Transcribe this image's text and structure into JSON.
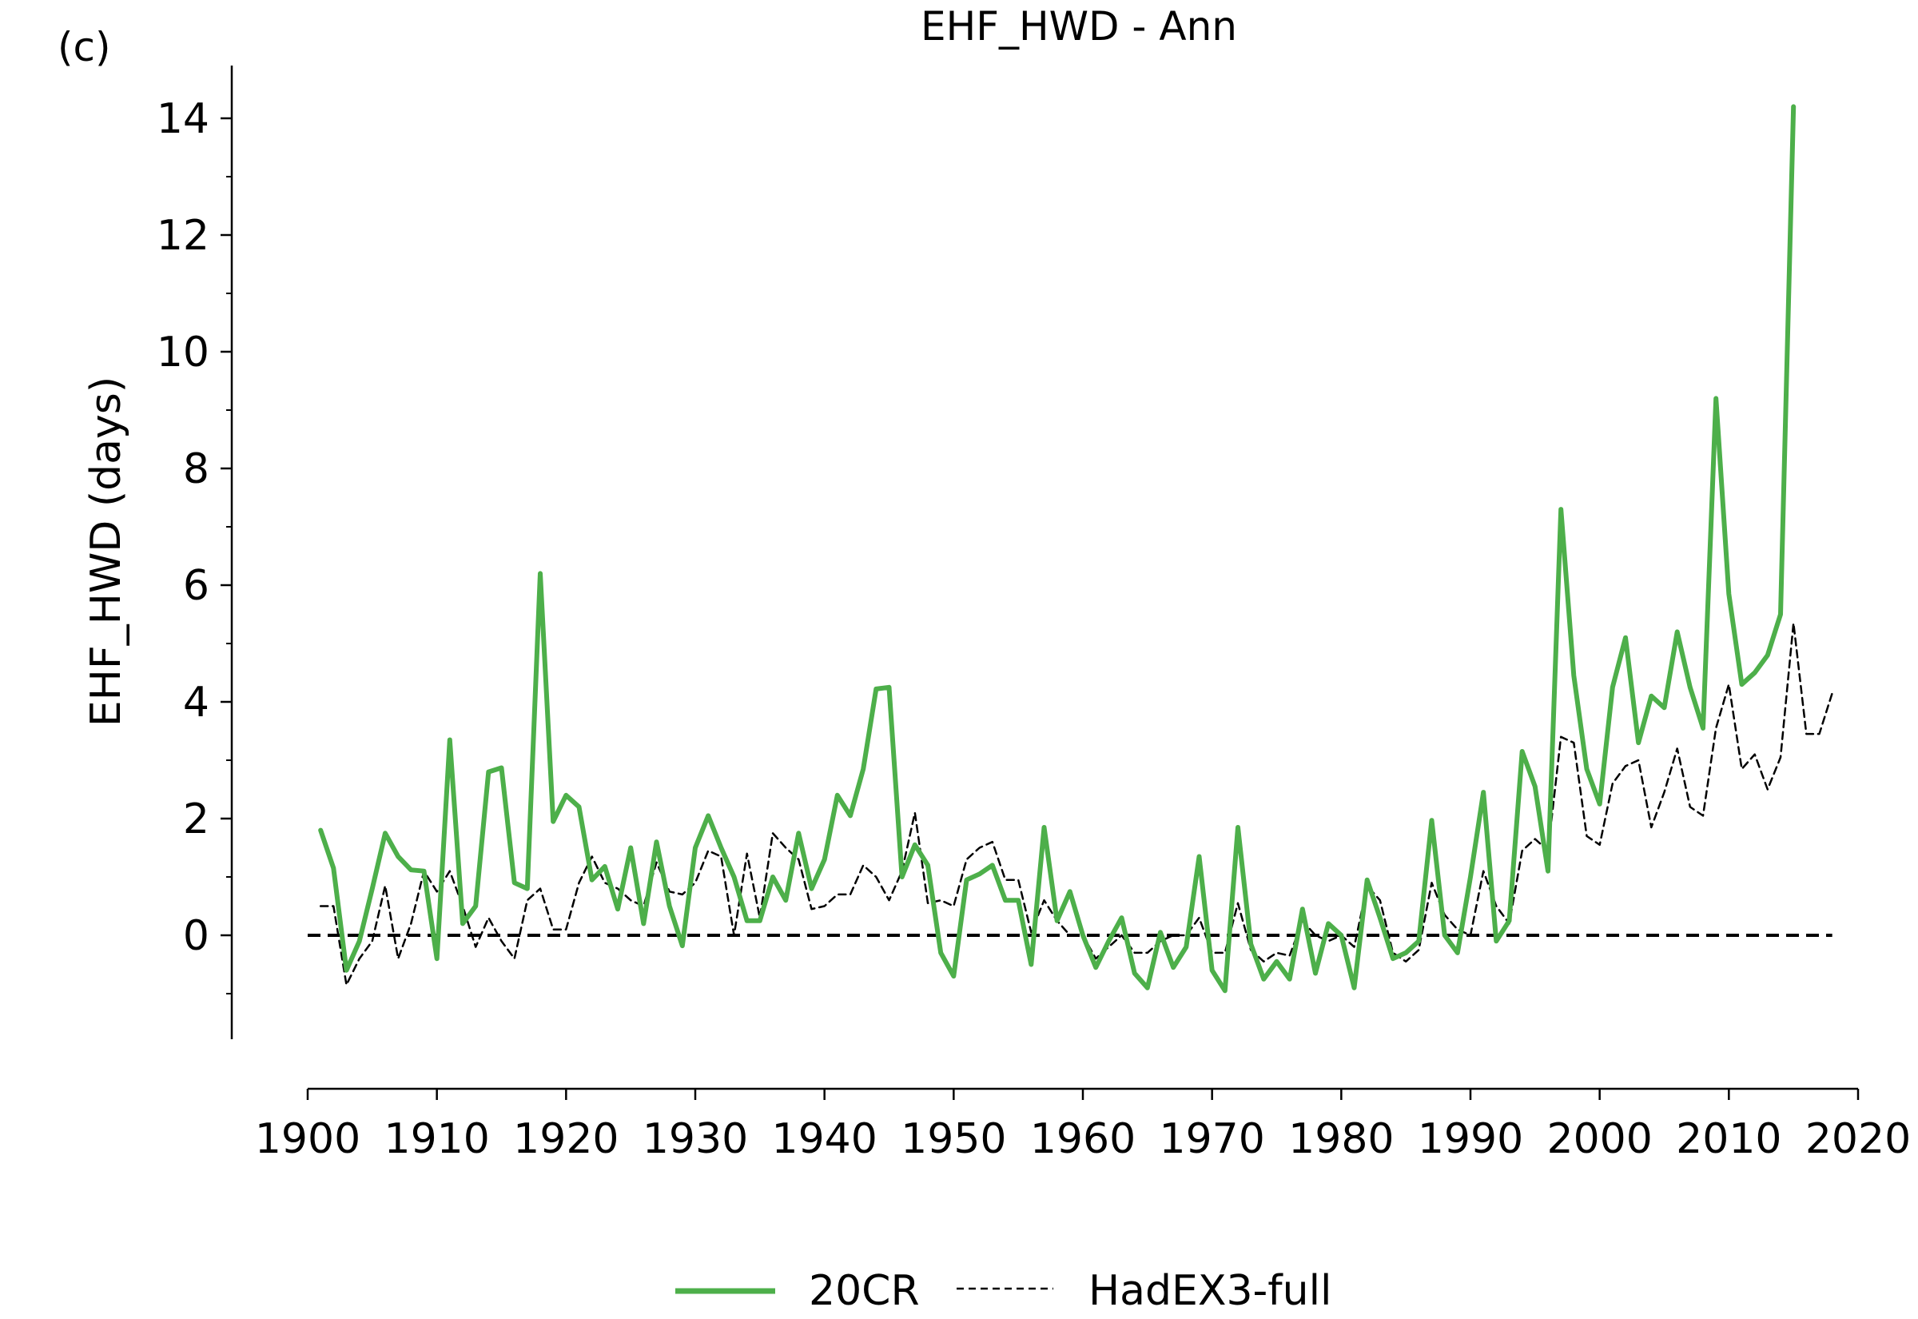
{
  "panel_label": "(c)",
  "chart_data": {
    "type": "line",
    "title": "EHF_HWD - Ann",
    "xlabel": "",
    "ylabel": "EHF_HWD (days)",
    "xlim": [
      1900,
      2020
    ],
    "ylim": [
      -1.5,
      15
    ],
    "xticks": [
      1900,
      1910,
      1920,
      1930,
      1940,
      1950,
      1960,
      1970,
      1980,
      1990,
      2000,
      2010,
      2020
    ],
    "yticks": [
      0,
      2,
      4,
      6,
      8,
      10,
      12,
      14
    ],
    "yminor_step": 1,
    "grid": false,
    "legend_position": "bottom-center",
    "reference_line": {
      "y": 0,
      "style": "dashed",
      "color": "#000000"
    },
    "series": [
      {
        "name": "20CR",
        "color": "#4daf4a",
        "style": "solid",
        "x": [
          1901,
          1902,
          1903,
          1904,
          1905,
          1906,
          1907,
          1908,
          1909,
          1910,
          1911,
          1912,
          1913,
          1914,
          1915,
          1916,
          1917,
          1918,
          1919,
          1920,
          1921,
          1922,
          1923,
          1924,
          1925,
          1926,
          1927,
          1928,
          1929,
          1930,
          1931,
          1932,
          1933,
          1934,
          1935,
          1936,
          1937,
          1938,
          1939,
          1940,
          1941,
          1942,
          1943,
          1944,
          1945,
          1946,
          1947,
          1948,
          1949,
          1950,
          1951,
          1952,
          1953,
          1954,
          1955,
          1956,
          1957,
          1958,
          1959,
          1960,
          1961,
          1962,
          1963,
          1964,
          1965,
          1966,
          1967,
          1968,
          1969,
          1970,
          1971,
          1972,
          1973,
          1974,
          1975,
          1976,
          1977,
          1978,
          1979,
          1980,
          1981,
          1982,
          1983,
          1984,
          1985,
          1986,
          1987,
          1988,
          1989,
          1990,
          1991,
          1992,
          1993,
          1994,
          1995,
          1996,
          1997,
          1998,
          1999,
          2000,
          2001,
          2002,
          2003,
          2004,
          2005,
          2006,
          2007,
          2008,
          2009,
          2010,
          2011,
          2012,
          2013,
          2014,
          2015
        ],
        "y": [
          1.8,
          1.15,
          -0.6,
          -0.1,
          0.8,
          1.75,
          1.35,
          1.12,
          1.1,
          -0.4,
          3.35,
          0.2,
          0.5,
          2.8,
          2.87,
          0.9,
          0.8,
          6.2,
          1.95,
          2.4,
          2.2,
          0.95,
          1.18,
          0.45,
          1.5,
          0.2,
          1.6,
          0.5,
          -0.18,
          1.5,
          2.05,
          1.5,
          1.0,
          0.25,
          0.25,
          1.0,
          0.6,
          1.75,
          0.8,
          1.3,
          2.4,
          2.05,
          2.85,
          4.22,
          4.25,
          1.0,
          1.55,
          1.2,
          -0.3,
          -0.7,
          0.95,
          1.05,
          1.2,
          0.6,
          0.6,
          -0.5,
          1.85,
          0.25,
          0.75,
          0.0,
          -0.55,
          -0.1,
          0.3,
          -0.65,
          -0.9,
          0.05,
          -0.55,
          -0.2,
          1.35,
          -0.6,
          -0.95,
          1.85,
          -0.15,
          -0.75,
          -0.45,
          -0.75,
          0.45,
          -0.65,
          0.2,
          0.0,
          -0.9,
          0.95,
          0.3,
          -0.4,
          -0.3,
          -0.1,
          1.97,
          0.0,
          -0.3,
          1.0,
          2.45,
          -0.1,
          0.25,
          3.15,
          2.55,
          1.1,
          7.3,
          4.45,
          2.85,
          2.25,
          4.25,
          5.1,
          3.3,
          4.1,
          3.9,
          5.2,
          4.25,
          3.55,
          9.2,
          5.85,
          4.3,
          4.5,
          4.8,
          5.5,
          14.2
        ]
      },
      {
        "name": "HadEX3-full",
        "color": "#000000",
        "style": "dashed",
        "x": [
          1901,
          1902,
          1903,
          1904,
          1905,
          1906,
          1907,
          1908,
          1909,
          1910,
          1911,
          1912,
          1913,
          1914,
          1915,
          1916,
          1917,
          1918,
          1919,
          1920,
          1921,
          1922,
          1923,
          1924,
          1925,
          1926,
          1927,
          1928,
          1929,
          1930,
          1931,
          1932,
          1933,
          1934,
          1935,
          1936,
          1937,
          1938,
          1939,
          1940,
          1941,
          1942,
          1943,
          1944,
          1945,
          1946,
          1947,
          1948,
          1949,
          1950,
          1951,
          1952,
          1953,
          1954,
          1955,
          1956,
          1957,
          1958,
          1959,
          1960,
          1961,
          1962,
          1963,
          1964,
          1965,
          1966,
          1967,
          1968,
          1969,
          1970,
          1971,
          1972,
          1973,
          1974,
          1975,
          1976,
          1977,
          1978,
          1979,
          1980,
          1981,
          1982,
          1983,
          1984,
          1985,
          1986,
          1987,
          1988,
          1989,
          1990,
          1991,
          1992,
          1993,
          1994,
          1995,
          1996,
          1997,
          1998,
          1999,
          2000,
          2001,
          2002,
          2003,
          2004,
          2005,
          2006,
          2007,
          2008,
          2009,
          2010,
          2011,
          2012,
          2013,
          2014,
          2015,
          2016,
          2017,
          2018
        ],
        "y": [
          0.5,
          0.5,
          -0.85,
          -0.4,
          -0.1,
          0.85,
          -0.4,
          0.2,
          1.1,
          0.75,
          1.1,
          0.5,
          -0.2,
          0.3,
          -0.1,
          -0.4,
          0.6,
          0.8,
          0.1,
          0.1,
          0.9,
          1.35,
          0.9,
          0.8,
          0.6,
          0.5,
          1.25,
          0.75,
          0.7,
          0.9,
          1.45,
          1.35,
          0.0,
          1.4,
          0.3,
          1.75,
          1.5,
          1.3,
          0.45,
          0.5,
          0.7,
          0.7,
          1.2,
          1.0,
          0.6,
          1.1,
          2.1,
          0.55,
          0.6,
          0.5,
          1.3,
          1.5,
          1.6,
          0.95,
          0.95,
          0.05,
          0.6,
          0.25,
          0.0,
          0.0,
          -0.4,
          -0.2,
          0.0,
          -0.3,
          -0.3,
          -0.1,
          0.0,
          0.0,
          0.3,
          -0.3,
          -0.3,
          0.55,
          -0.25,
          -0.45,
          -0.3,
          -0.35,
          0.25,
          0.0,
          -0.1,
          0.0,
          -0.2,
          0.85,
          0.6,
          -0.3,
          -0.45,
          -0.25,
          0.9,
          0.35,
          0.1,
          0.0,
          1.1,
          0.5,
          0.2,
          1.45,
          1.65,
          1.45,
          3.4,
          3.3,
          1.7,
          1.55,
          2.6,
          2.9,
          3.0,
          1.85,
          2.45,
          3.2,
          2.2,
          2.05,
          3.55,
          4.3,
          2.85,
          3.1,
          2.5,
          3.05,
          5.35,
          3.45,
          3.45,
          4.15
        ]
      }
    ]
  }
}
